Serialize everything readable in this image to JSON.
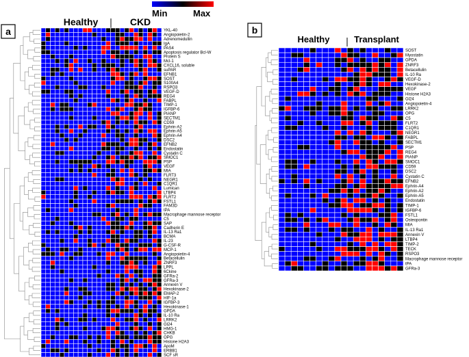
{
  "legend": {
    "min_label": "Min",
    "max_label": "Max",
    "colors": [
      "#0000ff",
      "#000000",
      "#ff0000"
    ]
  },
  "chart_data": [
    {
      "type": "heatmap",
      "panel": "a",
      "groups": [
        {
          "label": "Healthy",
          "columns": 14
        },
        {
          "label": "CKD",
          "columns": 12
        }
      ],
      "rows": [
        "YKL-40",
        "Angiopoietin-2",
        "Adrenomedullin",
        "IgA",
        "PAS4",
        "Apoptosis regulator Bcl-W",
        "Protein S",
        "Mcl-1",
        "CXCL16, soluble",
        "suPAR",
        "EFNB1",
        "SOST",
        "S100A4",
        "RSPO3",
        "VEGF-D",
        "REG4",
        "FABPL",
        "TIMP-1",
        "IGFBP-6",
        "PIANP",
        "SECTM1",
        "CD59",
        "Ephrin-A2",
        "Ephrin-A5",
        "Ephrin-A4",
        "DSC2",
        "EFNB2",
        "Endostatin",
        "Cystatin C",
        "SMOC1",
        "PSP",
        "VEGF",
        "MIA",
        "FLRT3",
        "NEGR1",
        "C1QR1",
        "Lumican",
        "LTBP4",
        "FLRT2",
        "FSTL1",
        "FAM3D",
        "tPA",
        "Macrophage mannose receptor",
        "C5",
        "SAP",
        "Cadherin E",
        "IL-13 Ra1",
        "BCMA",
        "IL-23",
        "G-CSF-R",
        "MCP-1",
        "Angiopoietin-4",
        "Betacellulin",
        "ZNRF3",
        "LPPL",
        "6Ckine",
        "GFRa-2",
        "GFRa-3",
        "Annexin V",
        "Hexokinase-2",
        "EMAP-2",
        "HIF-1a",
        "IGFBP-3",
        "Hexokinase-1",
        "GPDA",
        "IL-10 Ra",
        "LRRK2",
        "Gl24",
        "HMG-1",
        "CHKB",
        "OPG",
        "Histone H2A3",
        "ApoM",
        "ERBB1",
        "SCF sR"
      ]
    },
    {
      "type": "heatmap",
      "panel": "b",
      "groups": [
        {
          "label": "Healthy",
          "columns": 9
        },
        {
          "label": "Transplant",
          "columns": 11
        }
      ],
      "rows": [
        "SOST",
        "Myostatin",
        "GPDA",
        "ZNRF3",
        "Betacellulin",
        "IL-10 Ra",
        "VEGF-D",
        "Hexokinase-2",
        "VEGF",
        "Histone H2A3",
        "Gl24",
        "Angiopoietin-4",
        "LRRK2",
        "OPG",
        "C5",
        "FLRT2",
        "C1QR1",
        "NEGR1",
        "FABPL",
        "SECTM1",
        "PSP",
        "REG4",
        "PIANP",
        "SMOC1",
        "CD59",
        "DSC2",
        "Cystatin C",
        "EFNB2",
        "Ephrin-A4",
        "Ephrin-A2",
        "Ephrin-A5",
        "Endostatin",
        "TIMP-1",
        "IGFBP-6",
        "FSTL1",
        "Osteopontin",
        "MIA",
        "IL-13 Ra1",
        "Annexin V",
        "LTBP4",
        "TIMP-2",
        "TECK",
        "RSPO3",
        "Macrophage mannose receptor",
        "tPA",
        "GFRa-3"
      ]
    }
  ]
}
